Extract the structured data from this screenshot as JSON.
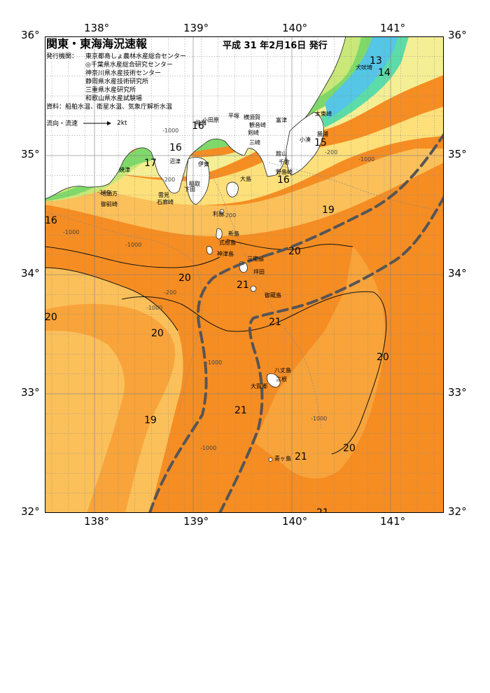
{
  "header": {
    "title": "関東・東海海況速報",
    "issue_date": "平成 31 年2月16日 発行",
    "issuers_label": "発行機関：",
    "issuers": [
      "東京都島しょ農林水産総合センター",
      "◎千葉県水産総合研究センター",
      "神奈川県水産技術センター",
      "静岡県水産技術研究所",
      "三重県水産研究所",
      "和歌山県水産試験場"
    ],
    "source_label": "資料：",
    "source": "船舶水温、衛星水温、気象庁解析水温",
    "legend_label": "流向・流速",
    "legend_speed": "2kt"
  },
  "axes": {
    "lon_ticks": [
      "138°",
      "139°",
      "140°",
      "141°"
    ],
    "lat_ticks": [
      "36°",
      "35°",
      "34°",
      "33°",
      "32°"
    ]
  },
  "colors": {
    "sea_deep_orange": "#f68d22",
    "sea_orange": "#f8a43a",
    "sea_light_orange": "#fbc05a",
    "sea_yellow": "#fde07a",
    "sea_pale_yellow": "#f4ef95",
    "sea_lime": "#c9e879",
    "sea_green": "#7fd96a",
    "sea_teal": "#5cdca8",
    "sea_cyan": "#55c6e6",
    "kuroshio_path": "#555555"
  },
  "isotherms": {
    "labels": [
      "13",
      "14",
      "15",
      "16",
      "16",
      "16",
      "16",
      "17",
      "19",
      "19",
      "20",
      "20",
      "20",
      "20",
      "20",
      "20",
      "21",
      "21",
      "21",
      "21",
      "21"
    ]
  },
  "depth_labels": [
    "-1000",
    "-1000",
    "-1000",
    "-1000",
    "-1000",
    "-1000",
    "-1000",
    "-200",
    "-200",
    "-200",
    "-200",
    "-200",
    "-1000"
  ],
  "places": {
    "coast": [
      "焼津",
      "沼津",
      "伊東",
      "熱海",
      "稲取",
      "下田",
      "石廊崎",
      "雲見",
      "御前崎",
      "地頭方",
      "小田原",
      "平塚",
      "横須賀",
      "観音崎",
      "剣崎",
      "三崎",
      "富津",
      "館山",
      "千倉",
      "野島崎",
      "小湊",
      "勝浦",
      "太東崎",
      "犬吠埼"
    ],
    "islands": [
      "大島",
      "利島",
      "新島",
      "式根島",
      "神津島",
      "三宅島",
      "御蔵島",
      "坪田",
      "八丈島",
      "三根",
      "大賀郷",
      "青ヶ島"
    ]
  }
}
